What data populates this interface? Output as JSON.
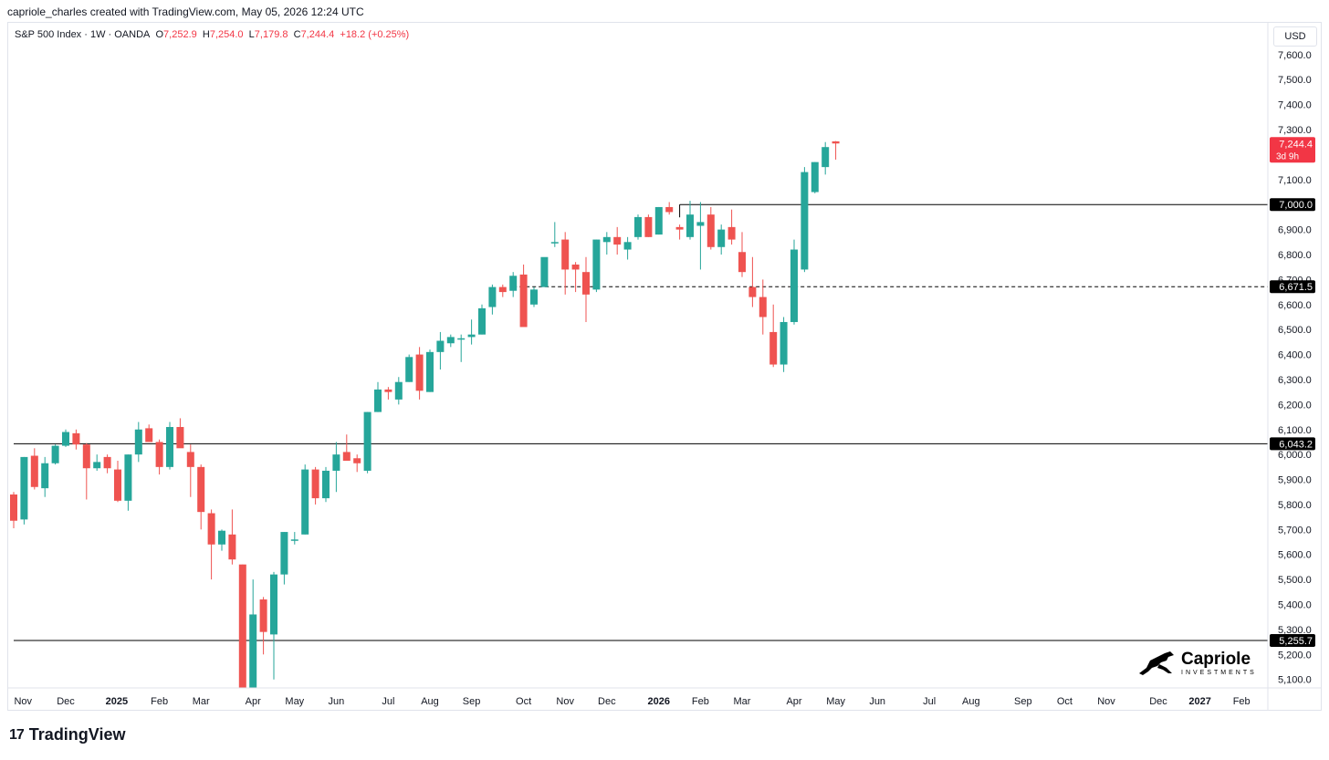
{
  "header": {
    "credit": "capriole_charles created with TradingView.com, May 05, 2026 12:24 UTC"
  },
  "legend": {
    "symbol": "S&P 500 Index · 1W · OANDA",
    "o_label": "O",
    "o_value": "7,252.9",
    "h_label": "H",
    "h_value": "7,254.0",
    "l_label": "L",
    "l_value": "7,179.8",
    "c_label": "C",
    "c_value": "7,244.4",
    "change": "+18.2 (+0.25%)"
  },
  "currency": "USD",
  "footer": {
    "brand": "TradingView",
    "brand_mark": "17"
  },
  "watermark": {
    "name": "Capriole",
    "sub": "INVESTMENTS"
  },
  "colors": {
    "up": "#26a69a",
    "down": "#ef5350",
    "last_price_bg": "#f23645",
    "line": "#000000"
  },
  "chart_data": {
    "type": "candlestick",
    "title": "S&P 500 Index · 1W · OANDA",
    "xlabel": "",
    "ylabel": "",
    "ylim": [
      5050,
      7700
    ],
    "y_ticks": [
      5100,
      5200,
      5300,
      5400,
      5500,
      5600,
      5700,
      5800,
      5900,
      6000,
      6100,
      6200,
      6300,
      6400,
      6500,
      6600,
      6700,
      6800,
      6900,
      7000,
      7100,
      7200,
      7300,
      7400,
      7500,
      7600
    ],
    "y_tick_labels": [
      "5,100.0",
      "5,200.0",
      "5,300.0",
      "5,400.0",
      "5,500.0",
      "5,600.0",
      "5,700.0",
      "5,800.0",
      "5,900.0",
      "6,000.0",
      "6,100.0",
      "6,200.0",
      "6,300.0",
      "6,400.0",
      "6,500.0",
      "6,600.0",
      "6,700.0",
      "6,800.0",
      "6,900.0",
      "7,000.0",
      "7,100.0",
      "7,200.0",
      "7,300.0",
      "7,400.0",
      "7,500.0",
      "7,600.0"
    ],
    "x_ticks": [
      {
        "label": "Nov",
        "week": 0.9,
        "bold": false
      },
      {
        "label": "Dec",
        "week": 5.0,
        "bold": false
      },
      {
        "label": "2025",
        "week": 9.9,
        "bold": true
      },
      {
        "label": "Feb",
        "week": 14.0,
        "bold": false
      },
      {
        "label": "Mar",
        "week": 18.0,
        "bold": false
      },
      {
        "label": "Apr",
        "week": 23.0,
        "bold": false
      },
      {
        "label": "May",
        "week": 27.0,
        "bold": false
      },
      {
        "label": "Jun",
        "week": 31.0,
        "bold": false
      },
      {
        "label": "Jul",
        "week": 36.0,
        "bold": false
      },
      {
        "label": "Aug",
        "week": 40.0,
        "bold": false
      },
      {
        "label": "Sep",
        "week": 44.0,
        "bold": false
      },
      {
        "label": "Oct",
        "week": 49.0,
        "bold": false
      },
      {
        "label": "Nov",
        "week": 53.0,
        "bold": false
      },
      {
        "label": "Dec",
        "week": 57.0,
        "bold": false
      },
      {
        "label": "2026",
        "week": 62.0,
        "bold": true
      },
      {
        "label": "Feb",
        "week": 66.0,
        "bold": false
      },
      {
        "label": "Mar",
        "week": 70.0,
        "bold": false
      },
      {
        "label": "Apr",
        "week": 75.0,
        "bold": false
      },
      {
        "label": "May",
        "week": 79.0,
        "bold": false
      },
      {
        "label": "Jun",
        "week": 83.0,
        "bold": false
      },
      {
        "label": "Jul",
        "week": 88.0,
        "bold": false
      },
      {
        "label": "Aug",
        "week": 92.0,
        "bold": false
      },
      {
        "label": "Sep",
        "week": 97.0,
        "bold": false
      },
      {
        "label": "Oct",
        "week": 101.0,
        "bold": false
      },
      {
        "label": "Nov",
        "week": 105.0,
        "bold": false
      },
      {
        "label": "Dec",
        "week": 110.0,
        "bold": false
      },
      {
        "label": "2027",
        "week": 114.0,
        "bold": true
      },
      {
        "label": "Feb",
        "week": 118.0,
        "bold": false
      }
    ],
    "candles": [
      [
        5840,
        5850,
        5705,
        5735
      ],
      [
        5740,
        5990,
        5720,
        5990
      ],
      [
        5995,
        6025,
        5860,
        5870
      ],
      [
        5865,
        5990,
        5830,
        5965
      ],
      [
        5965,
        6040,
        5960,
        6035
      ],
      [
        6035,
        6100,
        6030,
        6090
      ],
      [
        6085,
        6100,
        6020,
        6040
      ],
      [
        6040,
        6045,
        5820,
        5945
      ],
      [
        5945,
        6000,
        5935,
        5970
      ],
      [
        5990,
        6000,
        5925,
        5945
      ],
      [
        5940,
        5975,
        5810,
        5815
      ],
      [
        5815,
        6000,
        5775,
        6000
      ],
      [
        6000,
        6130,
        5970,
        6100
      ],
      [
        6105,
        6120,
        6050,
        6050
      ],
      [
        6050,
        6060,
        5920,
        5950
      ],
      [
        5950,
        6130,
        5940,
        6110
      ],
      [
        6110,
        6145,
        6040,
        6025
      ],
      [
        6010,
        6040,
        5830,
        5950
      ],
      [
        5950,
        5960,
        5700,
        5770
      ],
      [
        5765,
        5780,
        5500,
        5640
      ],
      [
        5640,
        5700,
        5615,
        5695
      ],
      [
        5680,
        5780,
        5560,
        5580
      ],
      [
        5560,
        5560,
        4840,
        4980
      ],
      [
        4980,
        5500,
        4930,
        5360
      ],
      [
        5420,
        5430,
        5200,
        5290
      ],
      [
        5280,
        5530,
        5100,
        5520
      ],
      [
        5520,
        5690,
        5480,
        5690
      ],
      [
        5660,
        5690,
        5640,
        5660
      ],
      [
        5680,
        5960,
        5680,
        5940
      ],
      [
        5940,
        5950,
        5800,
        5825
      ],
      [
        5825,
        5950,
        5810,
        5935
      ],
      [
        5935,
        6050,
        5850,
        6000
      ],
      [
        6010,
        6080,
        5985,
        5975
      ],
      [
        5985,
        6000,
        5930,
        5965
      ],
      [
        5935,
        6170,
        5925,
        6170
      ],
      [
        6170,
        6290,
        6170,
        6260
      ],
      [
        6260,
        6270,
        6220,
        6250
      ],
      [
        6220,
        6310,
        6200,
        6290
      ],
      [
        6290,
        6400,
        6290,
        6390
      ],
      [
        6400,
        6430,
        6220,
        6255
      ],
      [
        6250,
        6420,
        6250,
        6410
      ],
      [
        6410,
        6490,
        6340,
        6455
      ],
      [
        6445,
        6480,
        6430,
        6470
      ],
      [
        6460,
        6480,
        6370,
        6465
      ],
      [
        6470,
        6540,
        6440,
        6480
      ],
      [
        6480,
        6600,
        6480,
        6585
      ],
      [
        6590,
        6680,
        6560,
        6670
      ],
      [
        6670,
        6680,
        6630,
        6650
      ],
      [
        6655,
        6730,
        6630,
        6715
      ],
      [
        6720,
        6760,
        6520,
        6510
      ],
      [
        6600,
        6670,
        6590,
        6660
      ],
      [
        6670,
        6780,
        6670,
        6790
      ],
      [
        6845,
        6930,
        6830,
        6850
      ],
      [
        6860,
        6890,
        6640,
        6740
      ],
      [
        6760,
        6770,
        6650,
        6740
      ],
      [
        6730,
        6790,
        6530,
        6640
      ],
      [
        6660,
        6860,
        6650,
        6860
      ],
      [
        6850,
        6890,
        6800,
        6870
      ],
      [
        6870,
        6910,
        6800,
        6840
      ],
      [
        6820,
        6870,
        6780,
        6850
      ],
      [
        6870,
        6960,
        6860,
        6950
      ],
      [
        6950,
        6960,
        6870,
        6870
      ],
      [
        6880,
        6990,
        6880,
        6990
      ],
      [
        6990,
        7010,
        6960,
        6970
      ],
      [
        6910,
        6920,
        6860,
        6900
      ],
      [
        6870,
        7015,
        6860,
        6960
      ],
      [
        6915,
        7010,
        6740,
        6930
      ],
      [
        6960,
        6990,
        6820,
        6830
      ],
      [
        6830,
        6920,
        6800,
        6900
      ],
      [
        6910,
        6980,
        6840,
        6860
      ],
      [
        6810,
        6890,
        6710,
        6730
      ],
      [
        6670,
        6790,
        6590,
        6630
      ],
      [
        6630,
        6700,
        6480,
        6550
      ],
      [
        6490,
        6600,
        6350,
        6360
      ],
      [
        6360,
        6550,
        6330,
        6530
      ],
      [
        6530,
        6860,
        6520,
        6820
      ],
      [
        6740,
        7150,
        6730,
        7130
      ],
      [
        7050,
        7170,
        7045,
        7170
      ],
      [
        7150,
        7250,
        7120,
        7230
      ],
      [
        7252.9,
        7254.0,
        7179.8,
        7244.4
      ]
    ],
    "horizontal_lines": [
      {
        "price": 7000.0,
        "label": "7,000.0",
        "style": "solid",
        "from_week": 64
      },
      {
        "price": 6671.5,
        "label": "6,671.5",
        "style": "dashed",
        "from_week": 48
      },
      {
        "price": 6043.2,
        "label": "6,043.2",
        "style": "solid",
        "from_week": 0
      },
      {
        "price": 5255.7,
        "label": "5,255.7",
        "style": "solid",
        "from_week": 0
      }
    ],
    "last_price": {
      "value": 7244.4,
      "label": "7,244.4",
      "countdown": "3d 9h"
    }
  }
}
